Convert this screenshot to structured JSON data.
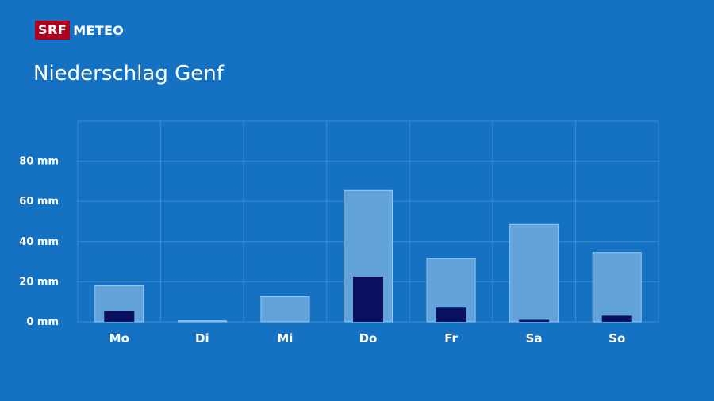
{
  "brand": {
    "logo": "SRF",
    "name": "METEO",
    "logo_color": "#AF001E"
  },
  "colors": {
    "background": "#1572C2",
    "total_bar": "#62A4DA",
    "total_bar_border": "#9CC8EE",
    "inner_bar": "#0A1060",
    "grid": "#3A8CD2"
  },
  "chart_data": {
    "type": "bar",
    "title": "Niederschlag Genf",
    "xlabel": "",
    "ylabel": "",
    "categories": [
      "Mo",
      "Di",
      "Mi",
      "Do",
      "Fr",
      "Sa",
      "So"
    ],
    "series": [
      {
        "values": [
          18,
          0.5,
          12.5,
          65.5,
          31.5,
          48.5,
          34.5
        ]
      },
      {
        "values": [
          5.5,
          0,
          0,
          22.5,
          7,
          1,
          3
        ]
      }
    ],
    "ylim": [
      0,
      100
    ],
    "yticks": [
      0,
      20,
      40,
      60,
      80
    ],
    "ytick_labels": [
      "0 mm",
      "20 mm",
      "40 mm",
      "60 mm",
      "80 mm"
    ],
    "grid": true
  }
}
